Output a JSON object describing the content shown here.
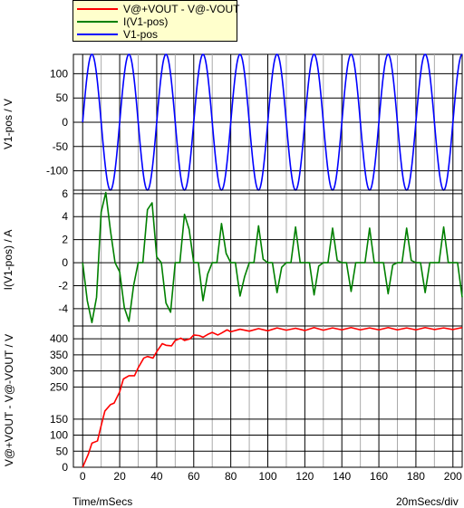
{
  "legend": {
    "items": [
      {
        "label": "V@+VOUT - V@-VOUT",
        "color": "#ff0000"
      },
      {
        "label": "I(V1-pos)",
        "color": "#008000"
      },
      {
        "label": "V1-pos",
        "color": "#0000ff"
      }
    ]
  },
  "footer": {
    "xlabel": "Time/mSecs",
    "scale": "20mSecs/div"
  },
  "chart_data": [
    {
      "type": "line",
      "title": "",
      "ylabel": "V1-pos / V",
      "xlim": [
        -5,
        205
      ],
      "ylim": [
        -140,
        140
      ],
      "yticks": [
        -100,
        -50,
        0,
        50,
        100
      ],
      "series": [
        {
          "name": "V1-pos",
          "color": "#0000ff",
          "function": "140*sin(2*pi*t/20)",
          "x_range": [
            0,
            205
          ]
        }
      ]
    },
    {
      "type": "line",
      "title": "",
      "ylabel": "I(V1-pos) / A",
      "xlim": [
        -5,
        205
      ],
      "ylim": [
        -5.5,
        6.3
      ],
      "yticks": [
        -4,
        -2,
        0,
        2,
        4,
        6
      ],
      "series": [
        {
          "name": "I(V1-pos)",
          "color": "#008000",
          "x": [
            0,
            2.5,
            5,
            7.5,
            10,
            12.5,
            15,
            17.5,
            20,
            22.5,
            25,
            27.5,
            30,
            32.5,
            35,
            37.5,
            40,
            42.5,
            45,
            47.5,
            50,
            52.5,
            55,
            57.5,
            60,
            62.5,
            65,
            67.5,
            70,
            72.5,
            75,
            77.5,
            80,
            82.5,
            85,
            87.5,
            90,
            92.5,
            95,
            97.5,
            100,
            102.5,
            105,
            107.5,
            110,
            112.5,
            115,
            117.5,
            120,
            122.5,
            125,
            127.5,
            130,
            132.5,
            135,
            137.5,
            140,
            142.5,
            145,
            147.5,
            150,
            152.5,
            155,
            157.5,
            160,
            162.5,
            165,
            167.5,
            170,
            172.5,
            175,
            177.5,
            180,
            182.5,
            185,
            187.5,
            190,
            192.5,
            195,
            197.5,
            200,
            202.5,
            205
          ],
          "y": [
            0,
            -3.3,
            -5.2,
            -3.0,
            4.4,
            6.1,
            2.8,
            0,
            -0.8,
            -3.9,
            -5.1,
            -2.0,
            0,
            0,
            4.6,
            5.2,
            0.5,
            0,
            -3.5,
            -4.3,
            0,
            0,
            4.2,
            2.9,
            0,
            0,
            -3.3,
            -1.0,
            0,
            0,
            3.4,
            0.8,
            0,
            0,
            -2.9,
            -1.2,
            0,
            0,
            3.2,
            0.3,
            0,
            0,
            -2.6,
            -0.4,
            0,
            0,
            3.1,
            0,
            0,
            0,
            -2.8,
            -0.3,
            0,
            0,
            3.0,
            0.2,
            0,
            0,
            -2.5,
            0,
            0,
            0,
            3.0,
            0,
            0,
            0,
            -2.7,
            -0.2,
            0,
            0,
            3.0,
            0.2,
            0,
            0,
            -2.6,
            0,
            0,
            0,
            3.1,
            0,
            0,
            0,
            -3.0
          ]
        }
      ]
    },
    {
      "type": "line",
      "title": "",
      "ylabel": "V@+VOUT - V@-VOUT / V",
      "xlim": [
        -5,
        205
      ],
      "ylim": [
        0,
        440
      ],
      "yticks": [
        0,
        50,
        100,
        150,
        250,
        300,
        350,
        400
      ],
      "xticks": [
        0,
        20,
        40,
        60,
        80,
        100,
        120,
        140,
        160,
        180,
        200
      ],
      "series": [
        {
          "name": "V@+VOUT - V@-VOUT",
          "color": "#ff0000",
          "x": [
            0,
            3,
            5,
            8,
            10,
            12,
            15,
            17,
            20,
            22,
            25,
            28,
            30,
            33,
            35,
            38,
            40,
            43,
            45,
            48,
            50,
            53,
            55,
            58,
            60,
            63,
            65,
            68,
            70,
            73,
            75,
            78,
            80,
            85,
            90,
            95,
            100,
            105,
            110,
            115,
            120,
            125,
            130,
            135,
            140,
            145,
            150,
            155,
            160,
            165,
            170,
            175,
            180,
            185,
            190,
            195,
            200,
            205
          ],
          "y": [
            0,
            40,
            75,
            82,
            130,
            175,
            195,
            200,
            235,
            275,
            285,
            285,
            310,
            340,
            345,
            340,
            360,
            385,
            380,
            378,
            395,
            402,
            395,
            400,
            412,
            410,
            405,
            415,
            420,
            412,
            418,
            428,
            422,
            430,
            424,
            432,
            425,
            434,
            427,
            433,
            426,
            435,
            427,
            434,
            428,
            435,
            428,
            434,
            428,
            435,
            428,
            434,
            428,
            435,
            429,
            434,
            429,
            435
          ]
        }
      ]
    }
  ]
}
